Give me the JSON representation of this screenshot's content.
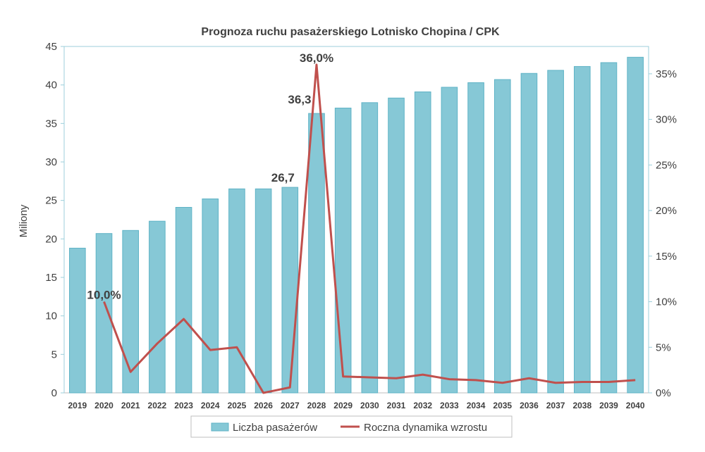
{
  "chart_data": {
    "type": "bar+line",
    "title": "Prognoza ruchu pasażerskiego Lotnisko Chopina / CPK",
    "ylabel": "Miliony",
    "ylim": [
      0,
      45
    ],
    "yticks": [
      "0",
      "5",
      "10",
      "15",
      "20",
      "25",
      "30",
      "35",
      "40",
      "45"
    ],
    "y2lim": [
      0,
      0.38
    ],
    "y2ticks": [
      "0%",
      "5%",
      "10%",
      "15%",
      "20%",
      "25%",
      "30%",
      "35%"
    ],
    "categories": [
      "2019",
      "2020",
      "2021",
      "2022",
      "2023",
      "2024",
      "2025",
      "2026",
      "2027",
      "2028",
      "2029",
      "2030",
      "2031",
      "2032",
      "2033",
      "2034",
      "2035",
      "2036",
      "2037",
      "2038",
      "2039",
      "2040"
    ],
    "series": [
      {
        "name": "Liczba pasażerów",
        "type": "bar",
        "axis": "left",
        "color": "#86c8d6",
        "values": [
          18.8,
          20.7,
          21.1,
          22.3,
          24.1,
          25.2,
          26.5,
          26.5,
          26.7,
          36.3,
          37.0,
          37.7,
          38.3,
          39.1,
          39.7,
          40.3,
          40.7,
          41.5,
          41.9,
          42.4,
          42.9,
          43.6
        ]
      },
      {
        "name": "Roczna dynamika wzrostu",
        "type": "line",
        "axis": "right",
        "color": "#c0504d",
        "values": [
          null,
          0.1,
          0.023,
          0.054,
          0.081,
          0.047,
          0.05,
          0.0,
          0.006,
          0.36,
          0.018,
          0.017,
          0.016,
          0.02,
          0.015,
          0.014,
          0.011,
          0.016,
          0.011,
          0.012,
          0.012,
          0.014
        ]
      }
    ],
    "annotations": [
      {
        "text": "10,0%",
        "category": "2020",
        "series": "Roczna dynamika wzrostu"
      },
      {
        "text": "26,7",
        "category": "2027",
        "series": "Liczba pasażerów"
      },
      {
        "text": "36,3",
        "category": "2028",
        "series": "Liczba pasażerów"
      },
      {
        "text": "36,0%",
        "category": "2028",
        "series": "Roczna dynamika wzrostu"
      }
    ],
    "legend": "bottom",
    "grid": false
  }
}
